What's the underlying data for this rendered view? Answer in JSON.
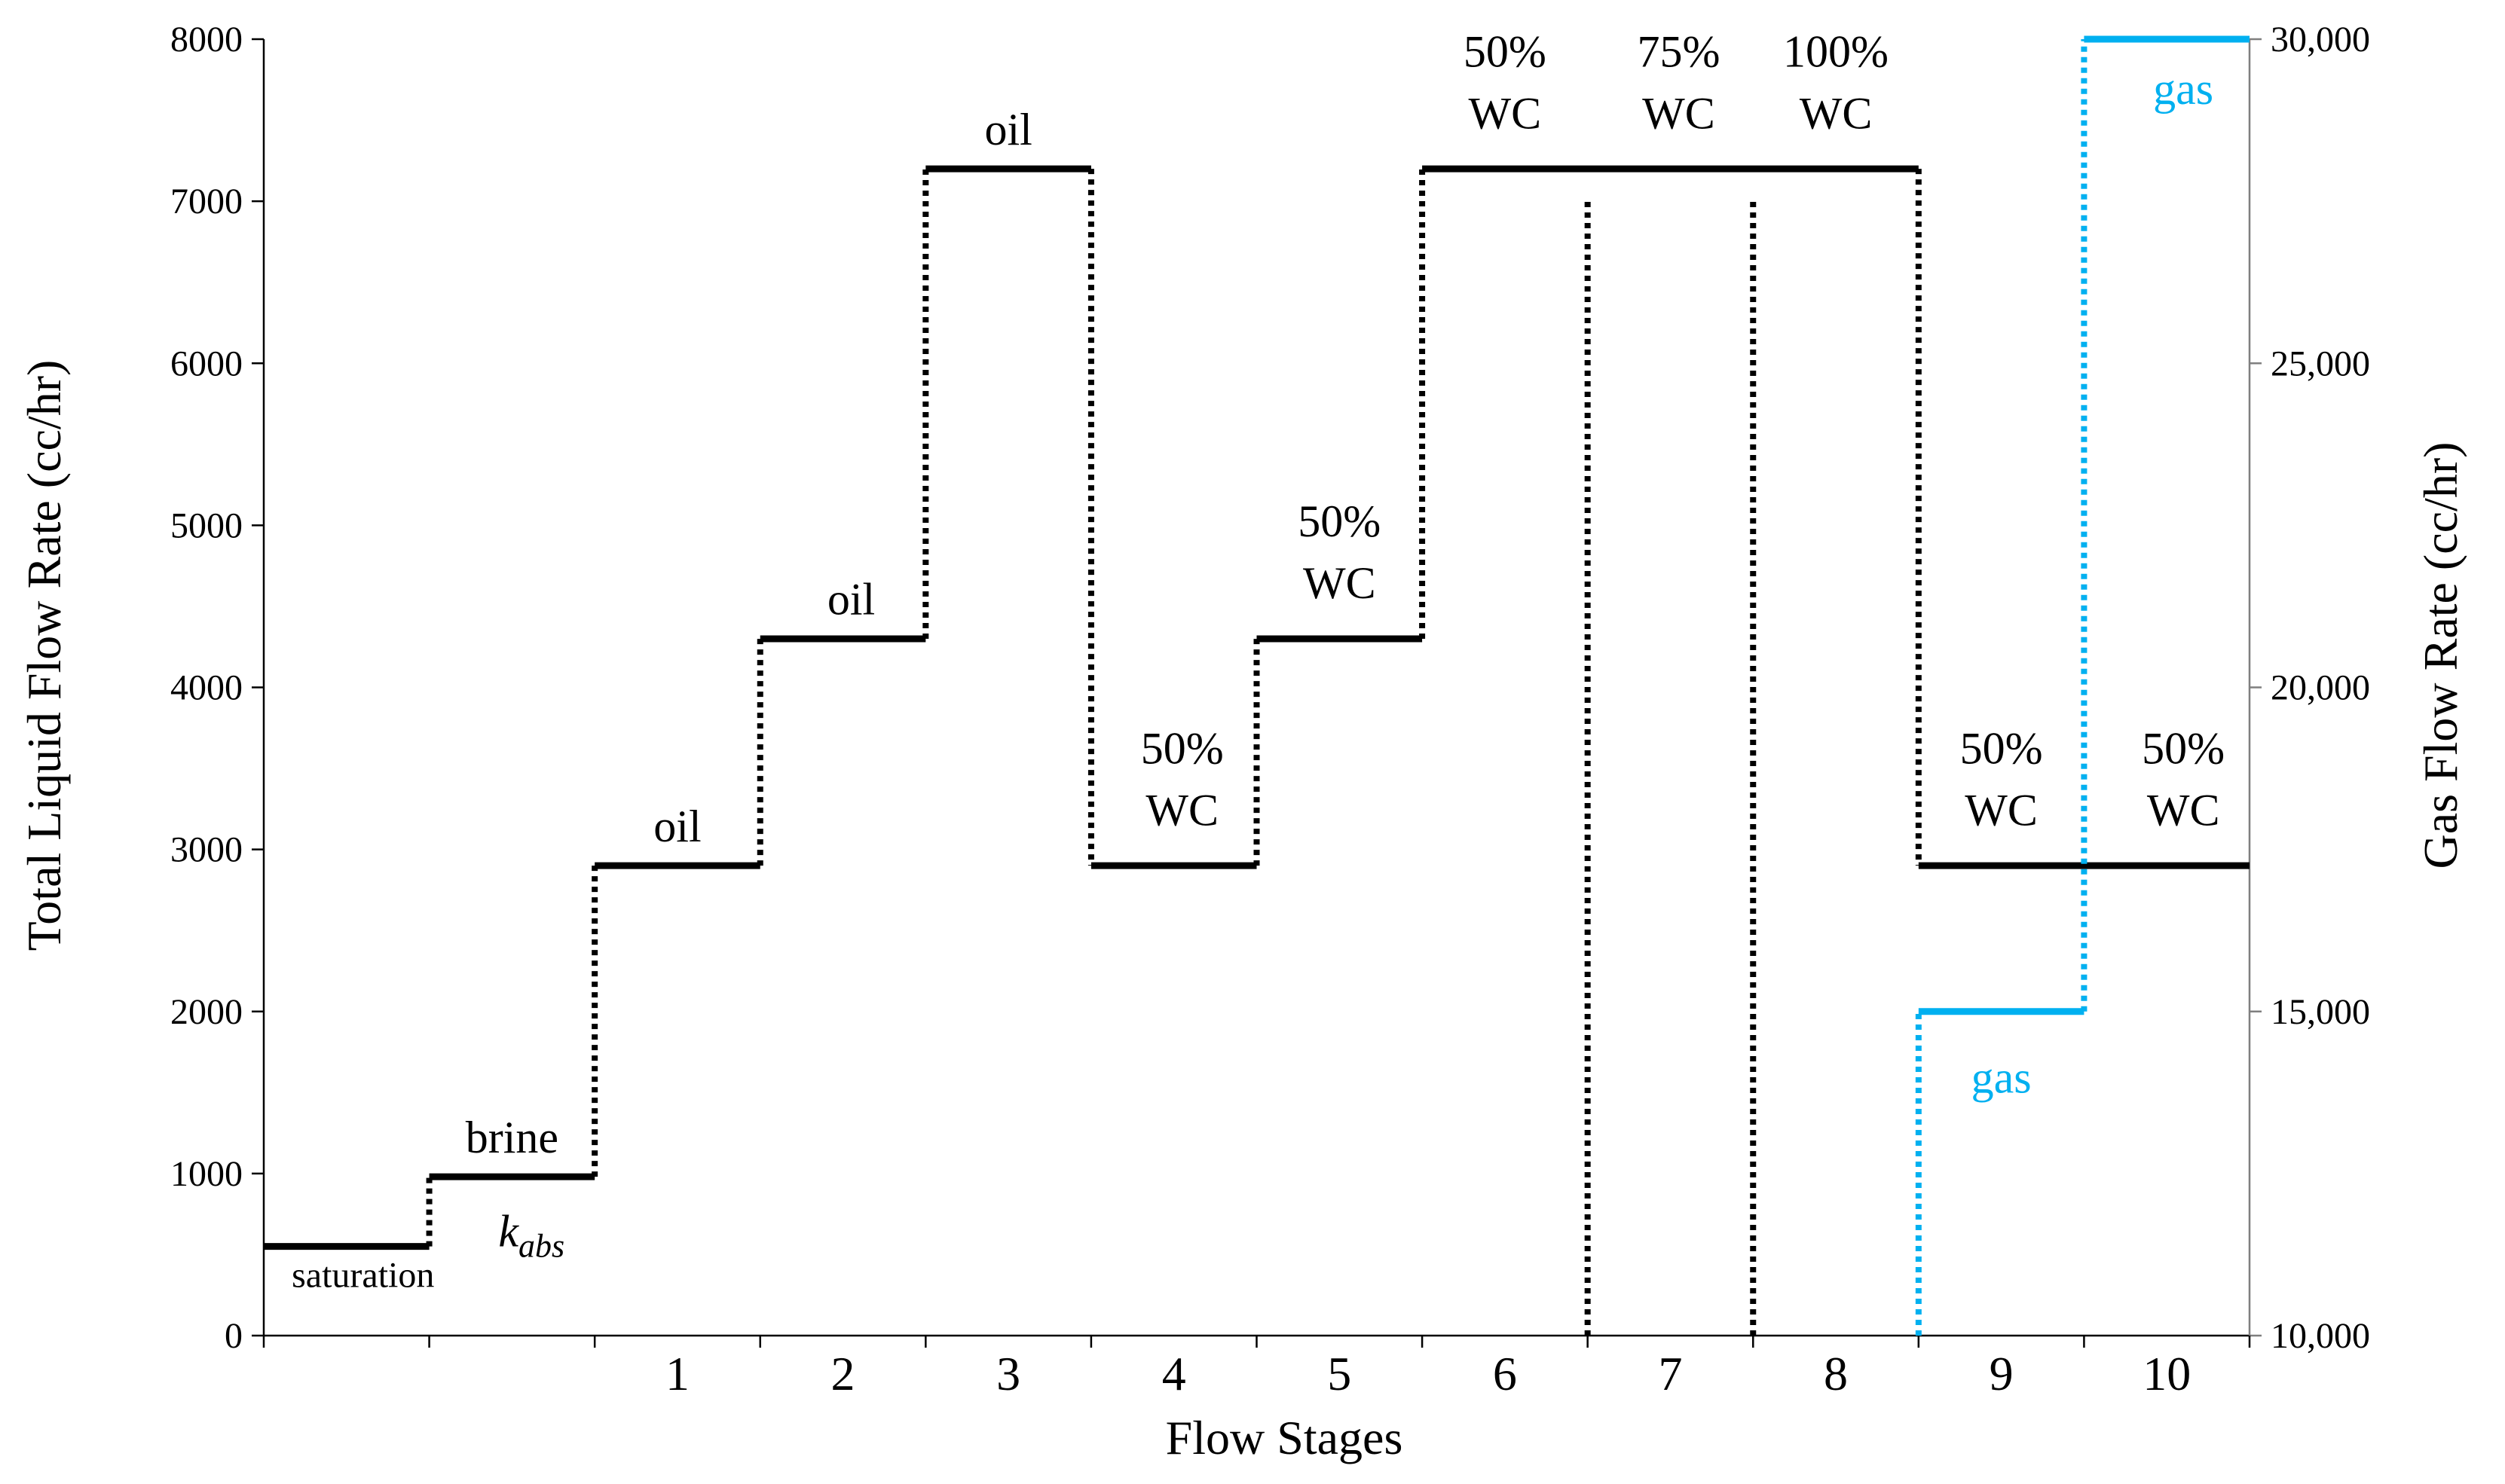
{
  "chart_data": {
    "type": "line",
    "xlabel": "Flow Stages",
    "ylabel_left": "Total Liquid Flow Rate (cc/hr)",
    "ylabel_right": "Gas Flow Rate (cc/hr)",
    "ylim_left": [
      0,
      8000
    ],
    "ylim_right": [
      10000,
      30000
    ],
    "y_ticks_left": [
      "0",
      "1000",
      "2000",
      "3000",
      "4000",
      "5000",
      "6000",
      "7000",
      "8000"
    ],
    "y_ticks_right": [
      "10,000",
      "15,000",
      "20,000",
      "25,000",
      "30,000"
    ],
    "x_segments": 12,
    "x_tick_labels": [
      "",
      "",
      "1",
      "2",
      "3",
      "4",
      "5",
      "6",
      "7",
      "8",
      "9",
      "10"
    ],
    "grid": false,
    "colors": {
      "liquid": "#000000",
      "gas": "#00b0f0"
    },
    "series": [
      {
        "axis": "left",
        "color": "#000000",
        "steps": [
          {
            "from": 0,
            "to": 1,
            "value": 550
          },
          {
            "from": 1,
            "to": 2,
            "value": 980
          },
          {
            "from": 2,
            "to": 3,
            "value": 2900
          },
          {
            "from": 3,
            "to": 4,
            "value": 4300
          },
          {
            "from": 4,
            "to": 5,
            "value": 7200
          },
          {
            "from": 5,
            "to": 6,
            "value": 2900
          },
          {
            "from": 6,
            "to": 7,
            "value": 4300
          },
          {
            "from": 7,
            "to": 10,
            "value": 7200
          },
          {
            "from": 10,
            "to": 12,
            "value": 2900
          }
        ]
      },
      {
        "axis": "right",
        "color": "#00b0f0",
        "steps": [
          {
            "from": 10,
            "to": 11,
            "value": 15000
          },
          {
            "from": 11,
            "to": 12,
            "value": 30000
          }
        ]
      }
    ],
    "dotted_separators": [
      {
        "x": 8,
        "from": 0,
        "to": 7000
      },
      {
        "x": 9,
        "from": 0,
        "to": 7000
      }
    ],
    "annotations": [
      {
        "lines": [
          "saturation"
        ],
        "x": 0.6,
        "y": 300,
        "size": "small",
        "color": "#000000"
      },
      {
        "lines": [
          "brine"
        ],
        "x": 1.5,
        "y": 1130,
        "color": "#000000"
      },
      {
        "lines": [
          "oil"
        ],
        "x": 2.5,
        "y": 3050,
        "color": "#000000"
      },
      {
        "lines": [
          "oil"
        ],
        "x": 3.55,
        "y": 4450,
        "color": "#000000"
      },
      {
        "lines": [
          "oil"
        ],
        "x": 4.5,
        "y": 7350,
        "color": "#000000"
      },
      {
        "lines": [
          "50%",
          "WC"
        ],
        "x": 5.55,
        "y": 3150,
        "color": "#000000"
      },
      {
        "lines": [
          "50%",
          "WC"
        ],
        "x": 6.5,
        "y": 4550,
        "color": "#000000"
      },
      {
        "lines": [
          "50%",
          "WC"
        ],
        "x": 7.5,
        "y": 7450,
        "color": "#000000"
      },
      {
        "lines": [
          "75%",
          "WC"
        ],
        "x": 8.55,
        "y": 7450,
        "color": "#000000"
      },
      {
        "lines": [
          "100%",
          "WC"
        ],
        "x": 9.5,
        "y": 7450,
        "color": "#000000"
      },
      {
        "lines": [
          "50%",
          "WC"
        ],
        "x": 10.5,
        "y": 3150,
        "color": "#000000"
      },
      {
        "lines": [
          "50%",
          "WC"
        ],
        "x": 11.6,
        "y": 3150,
        "color": "#000000"
      },
      {
        "lines": [
          "gas"
        ],
        "x": 10.5,
        "y": 1500,
        "color": "#00b0f0"
      },
      {
        "lines": [
          "gas"
        ],
        "x": 11.6,
        "y": 7600,
        "color": "#00b0f0"
      }
    ],
    "k_label": {
      "base": "k",
      "sub": "abs",
      "x": 1.6,
      "y": 550
    }
  }
}
